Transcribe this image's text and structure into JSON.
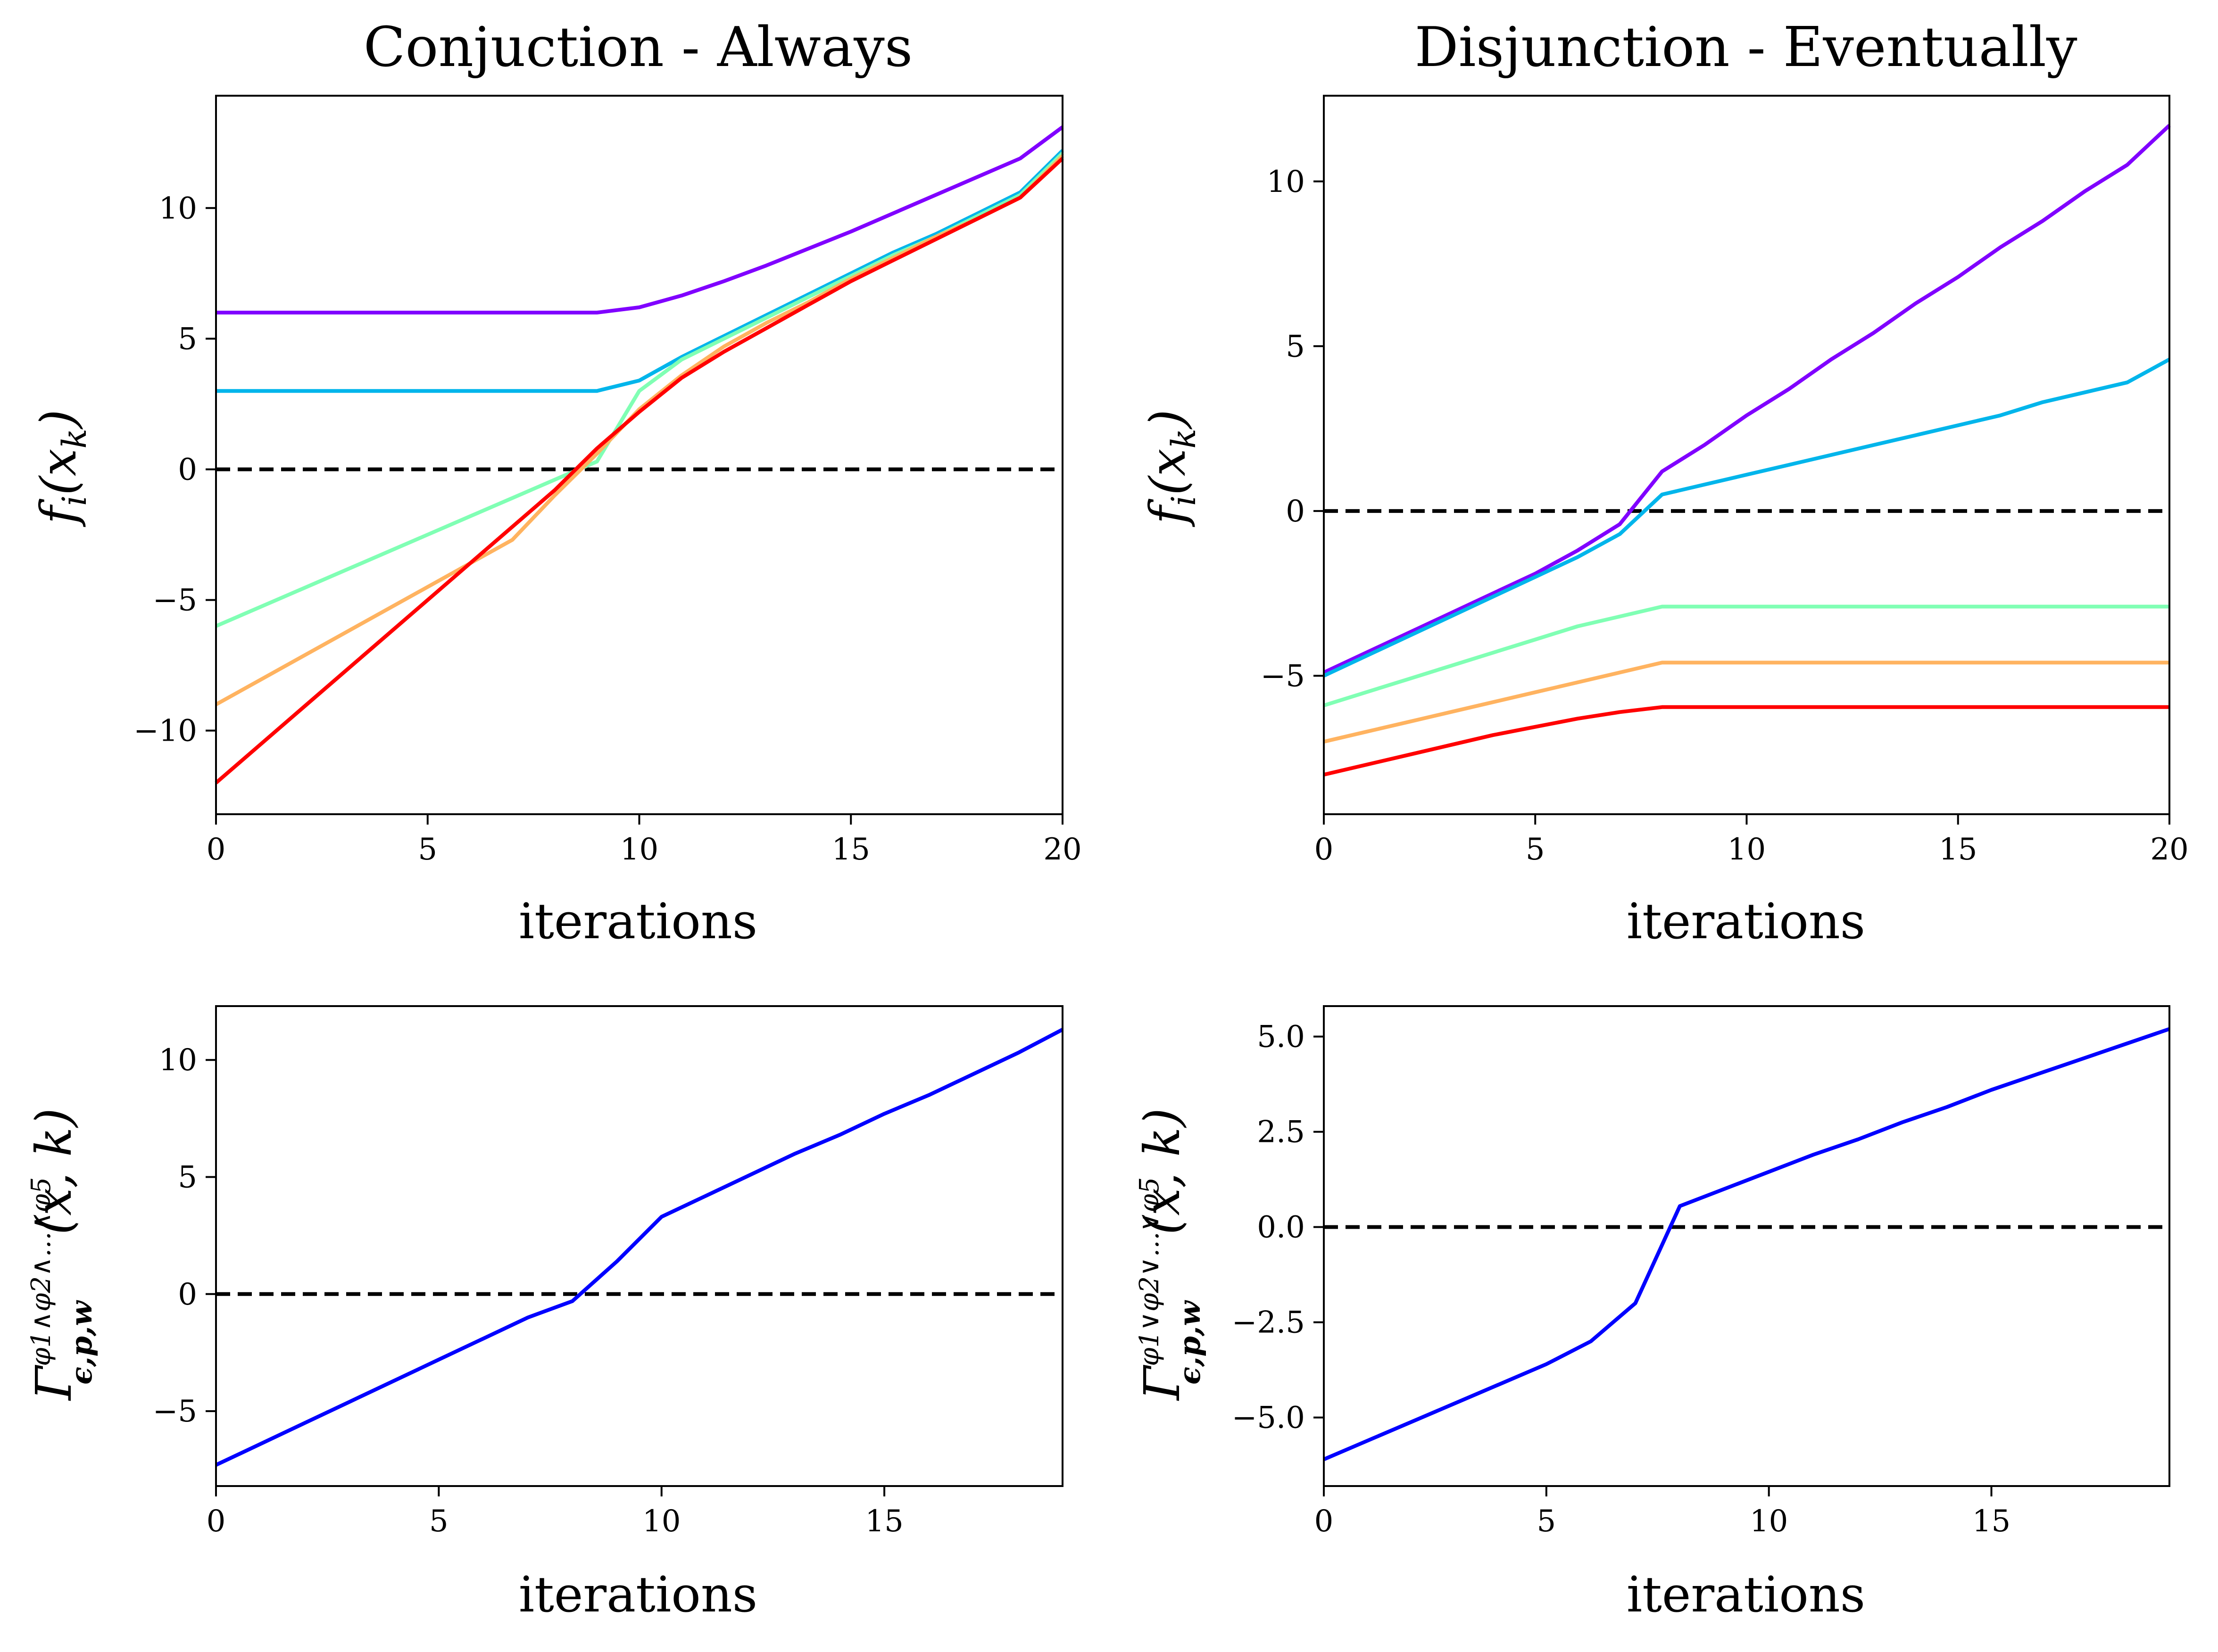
{
  "chart_data": [
    {
      "type": "line",
      "title": "Conjuction - Always",
      "xlabel": "iterations",
      "ylabel": "f_i(x_k)",
      "xlim": [
        0,
        20
      ],
      "ylim": [
        -13.2,
        14.3
      ],
      "xticks": [
        0,
        5,
        10,
        15,
        20
      ],
      "xtick_labels": [
        "0",
        "5",
        "10",
        "15",
        "20"
      ],
      "yticks": [
        -10,
        -5,
        0,
        5,
        10
      ],
      "ytick_labels": [
        "−10",
        "−5",
        "0",
        "5",
        "10"
      ],
      "grid": false,
      "reference_line": {
        "y": 0,
        "style": "dashed",
        "color": "#000000"
      },
      "x": [
        0,
        1,
        2,
        3,
        4,
        5,
        6,
        7,
        8,
        9,
        10,
        11,
        12,
        13,
        14,
        15,
        16,
        17,
        18,
        19,
        20
      ],
      "series": [
        {
          "color": "#8000ff",
          "values": [
            6,
            6,
            6,
            6,
            6,
            6,
            6,
            6,
            6,
            6,
            6.2,
            6.65,
            7.2,
            7.8,
            8.45,
            9.1,
            9.8,
            10.5,
            11.2,
            11.9,
            13.1
          ]
        },
        {
          "color": "#00b5eb",
          "values": [
            3,
            3,
            3,
            3,
            3,
            3,
            3,
            3,
            3,
            3,
            3.4,
            4.3,
            5.1,
            5.9,
            6.7,
            7.5,
            8.3,
            9.0,
            9.8,
            10.6,
            12.2
          ]
        },
        {
          "color": "#80ffb4",
          "values": [
            -6,
            -5.3,
            -4.6,
            -3.9,
            -3.2,
            -2.5,
            -1.8,
            -1.1,
            -0.4,
            0.3,
            3.0,
            4.2,
            5.0,
            5.8,
            6.6,
            7.4,
            8.2,
            8.9,
            9.7,
            10.5,
            12.1
          ]
        },
        {
          "color": "#ffb360",
          "values": [
            -9,
            -8.1,
            -7.2,
            -6.3,
            -5.4,
            -4.5,
            -3.6,
            -2.7,
            -1.0,
            0.6,
            2.3,
            3.6,
            4.7,
            5.6,
            6.4,
            7.3,
            8.1,
            8.9,
            9.6,
            10.4,
            12.0
          ]
        },
        {
          "color": "#ff0000",
          "values": [
            -12,
            -10.6,
            -9.2,
            -7.8,
            -6.4,
            -5.0,
            -3.6,
            -2.2,
            -0.8,
            0.8,
            2.2,
            3.5,
            4.5,
            5.4,
            6.3,
            7.2,
            8.0,
            8.8,
            9.6,
            10.4,
            11.9
          ]
        }
      ]
    },
    {
      "type": "line",
      "title": "Disjunction - Eventually",
      "xlabel": "iterations",
      "ylabel": "f_i(x_k)",
      "xlim": [
        0,
        20
      ],
      "ylim": [
        -9.2,
        12.6
      ],
      "xticks": [
        0,
        5,
        10,
        15,
        20
      ],
      "xtick_labels": [
        "0",
        "5",
        "10",
        "15",
        "20"
      ],
      "yticks": [
        -5,
        0,
        5,
        10
      ],
      "ytick_labels": [
        "−5",
        "0",
        "5",
        "10"
      ],
      "grid": false,
      "reference_line": {
        "y": 0,
        "style": "dashed",
        "color": "#000000"
      },
      "x": [
        0,
        1,
        2,
        3,
        4,
        5,
        6,
        7,
        8,
        9,
        10,
        11,
        12,
        13,
        14,
        15,
        16,
        17,
        18,
        19,
        20
      ],
      "series": [
        {
          "color": "#8000ff",
          "values": [
            -4.9,
            -4.3,
            -3.7,
            -3.1,
            -2.5,
            -1.9,
            -1.2,
            -0.4,
            1.2,
            2.0,
            2.9,
            3.7,
            4.6,
            5.4,
            6.3,
            7.1,
            8.0,
            8.8,
            9.7,
            10.5,
            11.7
          ]
        },
        {
          "color": "#00b5eb",
          "values": [
            -5.0,
            -4.4,
            -3.8,
            -3.2,
            -2.6,
            -2.0,
            -1.4,
            -0.7,
            0.5,
            0.8,
            1.1,
            1.4,
            1.7,
            2.0,
            2.3,
            2.6,
            2.9,
            3.3,
            3.6,
            3.9,
            4.6
          ]
        },
        {
          "color": "#80ffb4",
          "values": [
            -5.9,
            -5.5,
            -5.1,
            -4.7,
            -4.3,
            -3.9,
            -3.5,
            -3.2,
            -2.9,
            -2.9,
            -2.9,
            -2.9,
            -2.9,
            -2.9,
            -2.9,
            -2.9,
            -2.9,
            -2.9,
            -2.9,
            -2.9,
            -2.9
          ]
        },
        {
          "color": "#ffb360",
          "values": [
            -7.0,
            -6.7,
            -6.4,
            -6.1,
            -5.8,
            -5.5,
            -5.2,
            -4.9,
            -4.6,
            -4.6,
            -4.6,
            -4.6,
            -4.6,
            -4.6,
            -4.6,
            -4.6,
            -4.6,
            -4.6,
            -4.6,
            -4.6,
            -4.6
          ]
        },
        {
          "color": "#ff0000",
          "values": [
            -8.0,
            -7.7,
            -7.4,
            -7.1,
            -6.8,
            -6.55,
            -6.3,
            -6.1,
            -5.95,
            -5.95,
            -5.95,
            -5.95,
            -5.95,
            -5.95,
            -5.95,
            -5.95,
            -5.95,
            -5.95,
            -5.95,
            -5.95,
            -5.95
          ]
        }
      ]
    },
    {
      "type": "line",
      "xlabel": "iterations",
      "ylabel": "Γ^{φ1∧φ2∧...∧φ5}_{ϵ,p,w}(x, k)",
      "xlim": [
        0,
        19
      ],
      "ylim": [
        -8.2,
        12.3
      ],
      "xticks": [
        0,
        5,
        10,
        15
      ],
      "xtick_labels": [
        "0",
        "5",
        "10",
        "15"
      ],
      "yticks": [
        -5,
        0,
        5,
        10
      ],
      "ytick_labels": [
        "−5",
        "0",
        "5",
        "10"
      ],
      "grid": false,
      "reference_line": {
        "y": 0,
        "style": "dashed",
        "color": "#000000"
      },
      "x": [
        0,
        1,
        2,
        3,
        4,
        5,
        6,
        7,
        8,
        9,
        10,
        11,
        12,
        13,
        14,
        15,
        16,
        17,
        18,
        19
      ],
      "series": [
        {
          "color": "#0000ff",
          "values": [
            -7.3,
            -6.4,
            -5.5,
            -4.6,
            -3.7,
            -2.8,
            -1.9,
            -1.0,
            -0.3,
            1.4,
            3.3,
            4.2,
            5.1,
            6.0,
            6.8,
            7.7,
            8.5,
            9.4,
            10.3,
            11.3
          ]
        }
      ]
    },
    {
      "type": "line",
      "xlabel": "iterations",
      "ylabel": "Γ^{φ1∨φ2∨...∨φ5}_{ϵ,p,w}(x, k)",
      "xlim": [
        0,
        19
      ],
      "ylim": [
        -6.8,
        5.8
      ],
      "xticks": [
        0,
        5,
        10,
        15
      ],
      "xtick_labels": [
        "0",
        "5",
        "10",
        "15"
      ],
      "yticks": [
        -5,
        -2.5,
        0,
        2.5,
        5
      ],
      "ytick_labels": [
        "−5.0",
        "−2.5",
        "0.0",
        "2.5",
        "5.0"
      ],
      "grid": false,
      "reference_line": {
        "y": 0,
        "style": "dashed",
        "color": "#000000"
      },
      "x": [
        0,
        1,
        2,
        3,
        4,
        5,
        6,
        7,
        8,
        9,
        10,
        11,
        12,
        13,
        14,
        15,
        16,
        17,
        18,
        19
      ],
      "series": [
        {
          "color": "#0000ff",
          "values": [
            -6.1,
            -5.6,
            -5.1,
            -4.6,
            -4.1,
            -3.6,
            -3.0,
            -2.0,
            0.55,
            1.0,
            1.45,
            1.9,
            2.3,
            2.75,
            3.15,
            3.6,
            4.0,
            4.4,
            4.8,
            5.2
          ]
        }
      ]
    }
  ]
}
